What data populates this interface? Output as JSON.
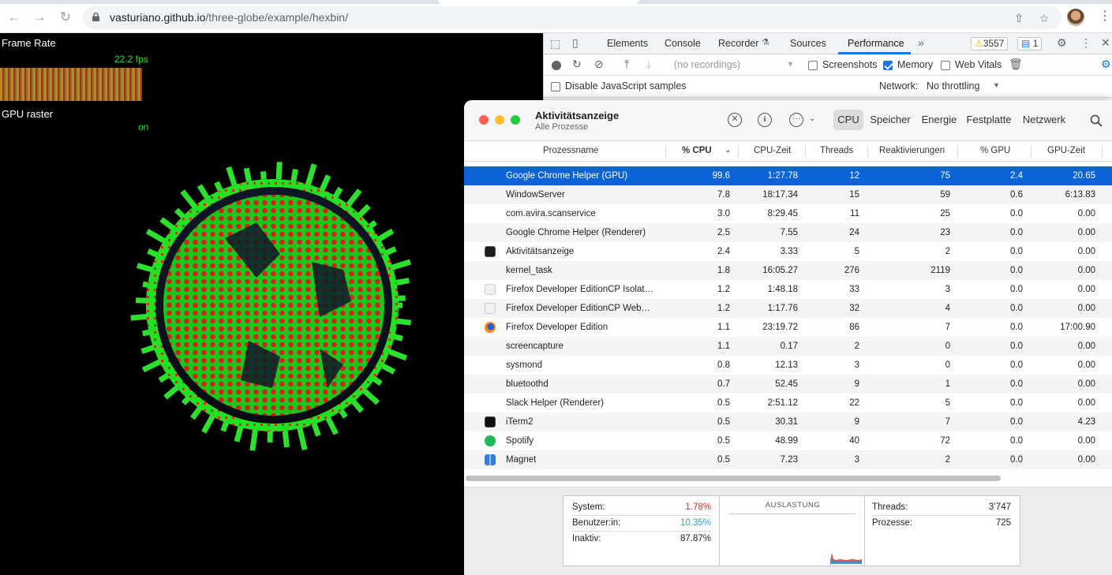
{
  "browser": {
    "url_host": "vasturiano.github.io",
    "url_path": "/three-globe/example/hexbin/"
  },
  "page": {
    "stats": {
      "frame_rate_title": "Frame Rate",
      "frame_rate_value": "22.2 fps",
      "gpu_title": "GPU raster",
      "gpu_value": "on"
    }
  },
  "devtools": {
    "tabs": [
      "Elements",
      "Console",
      "Recorder",
      "Sources",
      "Performance"
    ],
    "active_tab": "Performance",
    "warnings_count": "3557",
    "messages_count": "1",
    "recordings_placeholder": "(no recordings)",
    "screenshots_label": "Screenshots",
    "memory_label": "Memory",
    "web_vitals_label": "Web Vitals",
    "disable_js_samples_label": "Disable JavaScript samples",
    "network_label": "Network:",
    "network_value": "No throttling"
  },
  "activity_monitor": {
    "title": "Aktivitätsanzeige",
    "subtitle": "Alle Prozesse",
    "segments": [
      "CPU",
      "Speicher",
      "Energie",
      "Festplatte",
      "Netzwerk"
    ],
    "active_segment": "CPU",
    "columns": [
      "Prozessname",
      "% CPU",
      "CPU-Zeit",
      "Threads",
      "Reaktivierungen",
      "% GPU",
      "GPU-Zeit"
    ],
    "rows": [
      {
        "name": "Google Chrome Helper (GPU)",
        "cpu": "99.6",
        "time": "1:27.78",
        "threads": "12",
        "wakeups": "75",
        "gpu": "2.4",
        "gpu_time": "20.65",
        "icon": ""
      },
      {
        "name": "WindowServer",
        "cpu": "7.8",
        "time": "18:17.34",
        "threads": "15",
        "wakeups": "59",
        "gpu": "0.6",
        "gpu_time": "6:13.83",
        "icon": ""
      },
      {
        "name": "com.avira.scanservice",
        "cpu": "3.0",
        "time": "8:29.45",
        "threads": "11",
        "wakeups": "25",
        "gpu": "0.0",
        "gpu_time": "0.00",
        "icon": ""
      },
      {
        "name": "Google Chrome Helper (Renderer)",
        "cpu": "2.5",
        "time": "7.55",
        "threads": "24",
        "wakeups": "23",
        "gpu": "0.0",
        "gpu_time": "0.00",
        "icon": ""
      },
      {
        "name": "Aktivitätsanzeige",
        "cpu": "2.4",
        "time": "3.33",
        "threads": "5",
        "wakeups": "2",
        "gpu": "0.0",
        "gpu_time": "0.00",
        "icon": "activity-monitor-icon"
      },
      {
        "name": "kernel_task",
        "cpu": "1.8",
        "time": "16:05.27",
        "threads": "276",
        "wakeups": "2119",
        "gpu": "0.0",
        "gpu_time": "0.00",
        "icon": ""
      },
      {
        "name": "Firefox Developer EditionCP Isolated Web Content",
        "cpu": "1.2",
        "time": "1:48.18",
        "threads": "33",
        "wakeups": "3",
        "gpu": "0.0",
        "gpu_time": "0.00",
        "icon": "generic-app-icon"
      },
      {
        "name": "Firefox Developer EditionCP WebExtensions",
        "cpu": "1.2",
        "time": "1:17.76",
        "threads": "32",
        "wakeups": "4",
        "gpu": "0.0",
        "gpu_time": "0.00",
        "icon": "generic-app-icon"
      },
      {
        "name": "Firefox Developer Edition",
        "cpu": "1.1",
        "time": "23:19.72",
        "threads": "86",
        "wakeups": "7",
        "gpu": "0.0",
        "gpu_time": "17:00.90",
        "icon": "firefox-icon"
      },
      {
        "name": "screencapture",
        "cpu": "1.1",
        "time": "0.17",
        "threads": "2",
        "wakeups": "0",
        "gpu": "0.0",
        "gpu_time": "0.00",
        "icon": ""
      },
      {
        "name": "sysmond",
        "cpu": "0.8",
        "time": "12.13",
        "threads": "3",
        "wakeups": "0",
        "gpu": "0.0",
        "gpu_time": "0.00",
        "icon": ""
      },
      {
        "name": "bluetoothd",
        "cpu": "0.7",
        "time": "52.45",
        "threads": "9",
        "wakeups": "1",
        "gpu": "0.0",
        "gpu_time": "0.00",
        "icon": ""
      },
      {
        "name": "Slack Helper (Renderer)",
        "cpu": "0.5",
        "time": "2:51.12",
        "threads": "22",
        "wakeups": "5",
        "gpu": "0.0",
        "gpu_time": "0.00",
        "icon": ""
      },
      {
        "name": "iTerm2",
        "cpu": "0.5",
        "time": "30.31",
        "threads": "9",
        "wakeups": "7",
        "gpu": "0.0",
        "gpu_time": "4.23",
        "icon": "iterm-icon"
      },
      {
        "name": "Spotify",
        "cpu": "0.5",
        "time": "48.99",
        "threads": "40",
        "wakeups": "72",
        "gpu": "0.0",
        "gpu_time": "0.00",
        "icon": "spotify-icon"
      },
      {
        "name": "Magnet",
        "cpu": "0.5",
        "time": "7.23",
        "threads": "3",
        "wakeups": "2",
        "gpu": "0.0",
        "gpu_time": "0.00",
        "icon": "magnet-icon"
      }
    ],
    "footer": {
      "system_label": "System:",
      "system_value": "1.78%",
      "user_label": "Benutzer:in:",
      "user_value": "10.35%",
      "idle_label": "Inaktiv:",
      "idle_value": "87.87%",
      "load_title": "AUSLASTUNG",
      "threads_label": "Threads:",
      "threads_value": "3’747",
      "processes_label": "Prozesse:",
      "processes_value": "725"
    },
    "colors": {
      "selection": "#0a63d8",
      "system": "#e0302c",
      "user": "#2a9cd8"
    }
  }
}
